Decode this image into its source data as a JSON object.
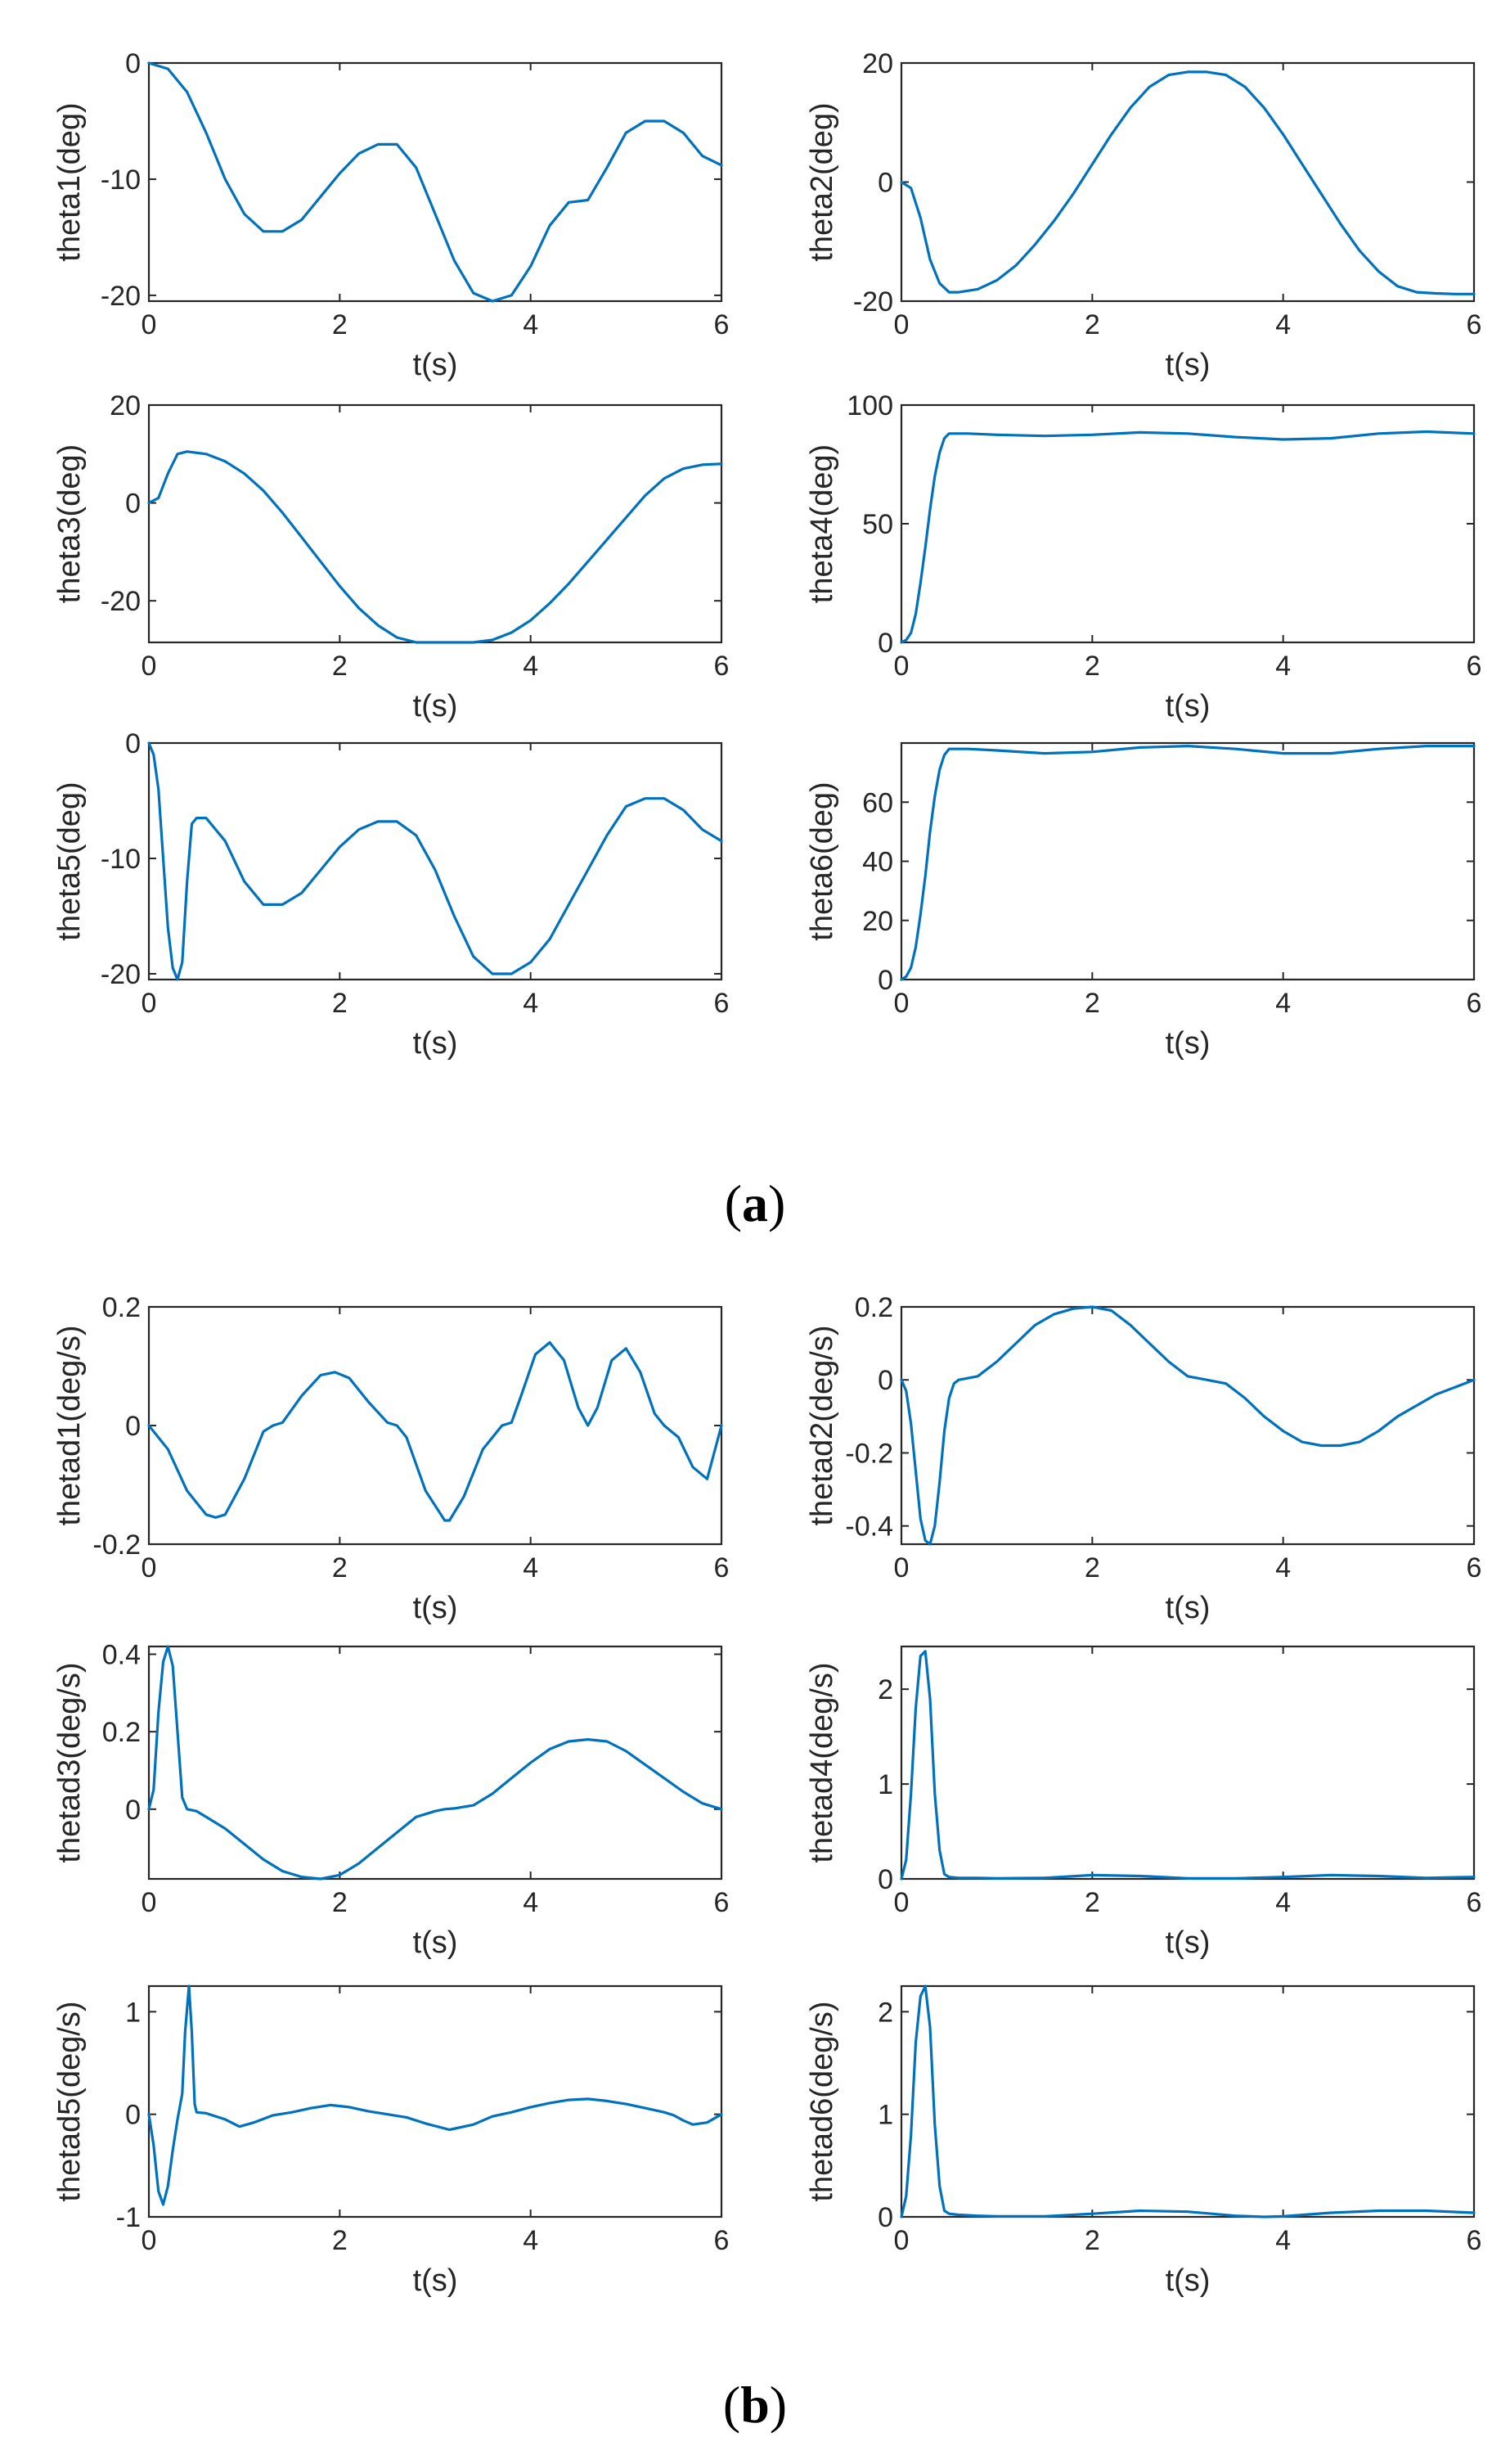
{
  "colors": {
    "line": "#0072BD",
    "axes": "#262626"
  },
  "panel_labels": [
    {
      "open": "(",
      "letter": "a",
      "close": ")"
    },
    {
      "open": "(",
      "letter": "b",
      "close": ")"
    }
  ],
  "chart_data": [
    {
      "type": "line",
      "panel": "a",
      "title": "",
      "xlabel": "t(s)",
      "ylabel": "theta1(deg)",
      "xlim": [
        0,
        6
      ],
      "ylim": [
        -20.5,
        0
      ],
      "xticks": [
        0,
        2,
        4,
        6
      ],
      "yticks": [
        -20,
        -10,
        0
      ],
      "series": [
        {
          "name": "theta1",
          "x": [
            0,
            0.2,
            0.4,
            0.6,
            0.8,
            1.0,
            1.2,
            1.4,
            1.6,
            1.8,
            2.0,
            2.2,
            2.4,
            2.6,
            2.8,
            3.0,
            3.2,
            3.4,
            3.6,
            3.8,
            4.0,
            4.2,
            4.4,
            4.6,
            4.8,
            5.0,
            5.2,
            5.4,
            5.6,
            5.8,
            6.0
          ],
          "y": [
            0,
            -0.5,
            -2.5,
            -6,
            -10,
            -13,
            -14.5,
            -14.5,
            -13.5,
            -11.5,
            -9.5,
            -7.8,
            -7,
            -7,
            -9,
            -13,
            -17,
            -19.8,
            -20.5,
            -20,
            -17.5,
            -14,
            -12,
            -11.8,
            -9,
            -6,
            -5,
            -5,
            -6,
            -8,
            -8.8
          ]
        }
      ]
    },
    {
      "type": "line",
      "panel": "a",
      "title": "",
      "xlabel": "t(s)",
      "ylabel": "theta2(deg)",
      "xlim": [
        0,
        6
      ],
      "ylim": [
        -20,
        20
      ],
      "xticks": [
        0,
        2,
        4,
        6
      ],
      "yticks": [
        -20,
        0,
        20
      ],
      "series": [
        {
          "name": "theta2",
          "x": [
            0,
            0.1,
            0.2,
            0.3,
            0.4,
            0.5,
            0.6,
            0.8,
            1.0,
            1.2,
            1.4,
            1.6,
            1.8,
            2.0,
            2.2,
            2.4,
            2.6,
            2.8,
            3.0,
            3.2,
            3.4,
            3.6,
            3.8,
            4.0,
            4.2,
            4.4,
            4.6,
            4.8,
            5.0,
            5.2,
            5.4,
            5.6,
            5.8,
            6.0
          ],
          "y": [
            0,
            -1,
            -6,
            -13,
            -17,
            -18.5,
            -18.5,
            -18,
            -16.5,
            -14,
            -10.5,
            -6.5,
            -2,
            3,
            8,
            12.5,
            16,
            18,
            18.5,
            18.5,
            18,
            16,
            12.5,
            8,
            3,
            -2,
            -7,
            -11.5,
            -15,
            -17.5,
            -18.5,
            -18.7,
            -18.8,
            -18.8
          ]
        }
      ]
    },
    {
      "type": "line",
      "panel": "a",
      "title": "",
      "xlabel": "t(s)",
      "ylabel": "theta3(deg)",
      "xlim": [
        0,
        6
      ],
      "ylim": [
        -28.5,
        20
      ],
      "xticks": [
        0,
        2,
        4,
        6
      ],
      "yticks": [
        -20,
        0,
        20
      ],
      "series": [
        {
          "name": "theta3",
          "x": [
            0,
            0.1,
            0.2,
            0.3,
            0.4,
            0.6,
            0.8,
            1.0,
            1.2,
            1.4,
            1.6,
            1.8,
            2.0,
            2.2,
            2.4,
            2.6,
            2.8,
            3.0,
            3.2,
            3.4,
            3.6,
            3.8,
            4.0,
            4.2,
            4.4,
            4.6,
            4.8,
            5.0,
            5.2,
            5.4,
            5.6,
            5.8,
            6.0
          ],
          "y": [
            0,
            1,
            6,
            10,
            10.5,
            10,
            8.5,
            6,
            2.5,
            -2,
            -7,
            -12,
            -17,
            -21.5,
            -25,
            -27.5,
            -28.5,
            -28.5,
            -28.5,
            -28.5,
            -28,
            -26.5,
            -24,
            -20.5,
            -16.5,
            -12,
            -7.5,
            -3,
            1.5,
            5,
            7,
            7.8,
            8
          ]
        }
      ]
    },
    {
      "type": "line",
      "panel": "a",
      "title": "",
      "xlabel": "t(s)",
      "ylabel": "theta4(deg)",
      "xlim": [
        0,
        6
      ],
      "ylim": [
        0,
        100
      ],
      "xticks": [
        0,
        2,
        4,
        6
      ],
      "yticks": [
        0,
        50,
        100
      ],
      "series": [
        {
          "name": "theta4",
          "x": [
            0,
            0.05,
            0.1,
            0.15,
            0.2,
            0.25,
            0.3,
            0.35,
            0.4,
            0.45,
            0.5,
            0.7,
            1.0,
            1.5,
            2.0,
            2.5,
            3.0,
            3.5,
            4.0,
            4.5,
            5.0,
            5.5,
            6.0
          ],
          "y": [
            0,
            1,
            4,
            12,
            25,
            40,
            56,
            70,
            80,
            86,
            88,
            88,
            87.5,
            87,
            87.5,
            88.5,
            88,
            86.5,
            85.5,
            86,
            88,
            88.8,
            88
          ]
        }
      ]
    },
    {
      "type": "line",
      "panel": "a",
      "title": "",
      "xlabel": "t(s)",
      "ylabel": "theta5(deg)",
      "xlim": [
        0,
        6
      ],
      "ylim": [
        -20.5,
        0
      ],
      "xticks": [
        0,
        2,
        4,
        6
      ],
      "yticks": [
        -20,
        -10,
        0
      ],
      "series": [
        {
          "name": "theta5",
          "x": [
            0,
            0.05,
            0.1,
            0.15,
            0.2,
            0.25,
            0.3,
            0.35,
            0.4,
            0.45,
            0.5,
            0.6,
            0.8,
            1.0,
            1.2,
            1.4,
            1.6,
            1.8,
            2.0,
            2.2,
            2.4,
            2.6,
            2.8,
            3.0,
            3.2,
            3.4,
            3.6,
            3.8,
            4.0,
            4.2,
            4.4,
            4.6,
            4.8,
            5.0,
            5.2,
            5.4,
            5.6,
            5.8,
            6.0
          ],
          "y": [
            0,
            -1,
            -4,
            -10,
            -16,
            -19.5,
            -20.5,
            -19,
            -12,
            -7,
            -6.5,
            -6.5,
            -8.5,
            -12,
            -14,
            -14,
            -13,
            -11,
            -9,
            -7.5,
            -6.8,
            -6.8,
            -8,
            -11,
            -15,
            -18.5,
            -20,
            -20,
            -19,
            -17,
            -14,
            -11,
            -8,
            -5.5,
            -4.8,
            -4.8,
            -5.8,
            -7.5,
            -8.5
          ]
        }
      ]
    },
    {
      "type": "line",
      "panel": "a",
      "title": "",
      "xlabel": "t(s)",
      "ylabel": "theta6(deg)",
      "xlim": [
        0,
        6
      ],
      "ylim": [
        0,
        80
      ],
      "xticks": [
        0,
        2,
        4,
        6
      ],
      "yticks": [
        0,
        20,
        40,
        60
      ],
      "series": [
        {
          "name": "theta6",
          "x": [
            0,
            0.05,
            0.1,
            0.15,
            0.2,
            0.25,
            0.3,
            0.35,
            0.4,
            0.45,
            0.5,
            0.7,
            1.0,
            1.5,
            2.0,
            2.5,
            3.0,
            3.5,
            4.0,
            4.5,
            5.0,
            5.5,
            6.0
          ],
          "y": [
            0,
            1,
            4,
            11,
            22,
            35,
            50,
            62,
            71,
            76,
            78,
            78,
            77.5,
            76.5,
            77,
            78.5,
            79,
            78,
            76.5,
            76.5,
            78,
            79,
            79
          ]
        }
      ]
    },
    {
      "type": "line",
      "panel": "b",
      "title": "",
      "xlabel": "t(s)",
      "ylabel": "thetad1(deg/s)",
      "xlim": [
        0,
        6
      ],
      "ylim": [
        -0.2,
        0.2
      ],
      "xticks": [
        0,
        2,
        4,
        6
      ],
      "yticks": [
        -0.2,
        0,
        0.2
      ],
      "series": [
        {
          "name": "thetad1",
          "x": [
            0,
            0.2,
            0.4,
            0.6,
            0.7,
            0.8,
            1.0,
            1.2,
            1.3,
            1.4,
            1.6,
            1.8,
            1.95,
            2.1,
            2.3,
            2.5,
            2.6,
            2.7,
            2.9,
            3.1,
            3.15,
            3.3,
            3.5,
            3.7,
            3.8,
            3.9,
            4.05,
            4.2,
            4.35,
            4.5,
            4.6,
            4.7,
            4.85,
            5.0,
            5.15,
            5.3,
            5.4,
            5.55,
            5.7,
            5.85,
            6.0
          ],
          "y": [
            0,
            -0.04,
            -0.11,
            -0.15,
            -0.155,
            -0.15,
            -0.09,
            -0.01,
            0,
            0.005,
            0.05,
            0.085,
            0.09,
            0.08,
            0.04,
            0.005,
            0,
            -0.02,
            -0.11,
            -0.16,
            -0.16,
            -0.12,
            -0.04,
            0,
            0.005,
            0.05,
            0.12,
            0.14,
            0.11,
            0.03,
            0,
            0.03,
            0.11,
            0.13,
            0.09,
            0.02,
            0,
            -0.02,
            -0.07,
            -0.09,
            0
          ]
        }
      ]
    },
    {
      "type": "line",
      "panel": "b",
      "title": "",
      "xlabel": "t(s)",
      "ylabel": "thetad2(deg/s)",
      "xlim": [
        0,
        6
      ],
      "ylim": [
        -0.45,
        0.2
      ],
      "xticks": [
        0,
        2,
        4,
        6
      ],
      "yticks": [
        -0.4,
        -0.2,
        0,
        0.2
      ],
      "series": [
        {
          "name": "thetad2",
          "x": [
            0,
            0.05,
            0.1,
            0.15,
            0.2,
            0.25,
            0.3,
            0.35,
            0.4,
            0.45,
            0.5,
            0.55,
            0.6,
            0.8,
            1.0,
            1.2,
            1.4,
            1.6,
            1.8,
            2.0,
            2.2,
            2.4,
            2.6,
            2.8,
            3.0,
            3.2,
            3.4,
            3.6,
            3.8,
            4.0,
            4.2,
            4.4,
            4.6,
            4.8,
            5.0,
            5.2,
            5.4,
            5.6,
            5.8,
            6.0
          ],
          "y": [
            0,
            -0.03,
            -0.12,
            -0.25,
            -0.38,
            -0.44,
            -0.45,
            -0.4,
            -0.28,
            -0.14,
            -0.05,
            -0.01,
            0,
            0.01,
            0.05,
            0.1,
            0.15,
            0.18,
            0.195,
            0.2,
            0.19,
            0.15,
            0.1,
            0.05,
            0.01,
            0,
            -0.01,
            -0.05,
            -0.1,
            -0.14,
            -0.17,
            -0.18,
            -0.18,
            -0.17,
            -0.14,
            -0.1,
            -0.07,
            -0.04,
            -0.02,
            0
          ]
        }
      ]
    },
    {
      "type": "line",
      "panel": "b",
      "title": "",
      "xlabel": "t(s)",
      "ylabel": "thetad3(deg/s)",
      "xlim": [
        0,
        6
      ],
      "ylim": [
        -0.18,
        0.42
      ],
      "xticks": [
        0,
        2,
        4,
        6
      ],
      "yticks": [
        0,
        0.2,
        0.4
      ],
      "series": [
        {
          "name": "thetad3",
          "x": [
            0,
            0.05,
            0.1,
            0.15,
            0.2,
            0.25,
            0.3,
            0.35,
            0.4,
            0.5,
            0.6,
            0.8,
            1.0,
            1.2,
            1.4,
            1.6,
            1.8,
            2.0,
            2.2,
            2.4,
            2.6,
            2.8,
            3.0,
            3.1,
            3.2,
            3.4,
            3.6,
            3.8,
            4.0,
            4.2,
            4.4,
            4.6,
            4.8,
            5.0,
            5.2,
            5.4,
            5.6,
            5.8,
            6.0
          ],
          "y": [
            0,
            0.05,
            0.25,
            0.38,
            0.42,
            0.37,
            0.2,
            0.03,
            0,
            -0.005,
            -0.02,
            -0.05,
            -0.09,
            -0.13,
            -0.16,
            -0.175,
            -0.18,
            -0.17,
            -0.14,
            -0.1,
            -0.06,
            -0.02,
            -0.005,
            0,
            0.002,
            0.01,
            0.04,
            0.08,
            0.12,
            0.155,
            0.175,
            0.18,
            0.175,
            0.15,
            0.115,
            0.08,
            0.045,
            0.015,
            0
          ]
        }
      ]
    },
    {
      "type": "line",
      "panel": "b",
      "title": "",
      "xlabel": "t(s)",
      "ylabel": "thetad4(deg/s)",
      "xlim": [
        0,
        6
      ],
      "ylim": [
        0,
        2.45
      ],
      "xticks": [
        0,
        2,
        4,
        6
      ],
      "yticks": [
        0,
        1,
        2
      ],
      "series": [
        {
          "name": "thetad4",
          "x": [
            0,
            0.05,
            0.1,
            0.15,
            0.2,
            0.25,
            0.3,
            0.35,
            0.4,
            0.45,
            0.5,
            0.6,
            0.8,
            1.0,
            1.5,
            2.0,
            2.5,
            3.0,
            3.5,
            4.0,
            4.5,
            5.0,
            5.5,
            6.0
          ],
          "y": [
            0,
            0.2,
            0.9,
            1.8,
            2.35,
            2.4,
            1.9,
            0.9,
            0.3,
            0.05,
            0.02,
            0.01,
            0.01,
            0.005,
            0.01,
            0.04,
            0.03,
            0.005,
            0.005,
            0.02,
            0.04,
            0.03,
            0.01,
            0.02
          ]
        }
      ]
    },
    {
      "type": "line",
      "panel": "b",
      "title": "",
      "xlabel": "t(s)",
      "ylabel": "thetad5(deg/s)",
      "xlim": [
        0,
        6
      ],
      "ylim": [
        -1,
        1.25
      ],
      "xticks": [
        0,
        2,
        4,
        6
      ],
      "yticks": [
        -1,
        0,
        1
      ],
      "series": [
        {
          "name": "thetad5",
          "x": [
            0,
            0.05,
            0.1,
            0.15,
            0.2,
            0.25,
            0.3,
            0.35,
            0.38,
            0.42,
            0.45,
            0.48,
            0.5,
            0.6,
            0.8,
            0.95,
            1.1,
            1.3,
            1.5,
            1.7,
            1.9,
            2.1,
            2.3,
            2.5,
            2.7,
            2.9,
            3.15,
            3.4,
            3.6,
            3.8,
            4.0,
            4.2,
            4.4,
            4.6,
            4.8,
            5.0,
            5.2,
            5.4,
            5.5,
            5.6,
            5.7,
            5.85,
            6.0
          ],
          "y": [
            0,
            -0.3,
            -0.75,
            -0.88,
            -0.7,
            -0.35,
            -0.05,
            0.2,
            0.8,
            1.25,
            0.8,
            0.1,
            0.02,
            0.01,
            -0.05,
            -0.12,
            -0.08,
            -0.01,
            0.02,
            0.06,
            0.09,
            0.07,
            0.03,
            0,
            -0.03,
            -0.09,
            -0.15,
            -0.1,
            -0.02,
            0.02,
            0.07,
            0.11,
            0.14,
            0.15,
            0.13,
            0.1,
            0.06,
            0.02,
            -0.01,
            -0.06,
            -0.1,
            -0.08,
            0
          ]
        }
      ]
    },
    {
      "type": "line",
      "panel": "b",
      "title": "",
      "xlabel": "t(s)",
      "ylabel": "thetad6(deg/s)",
      "xlim": [
        0,
        6
      ],
      "ylim": [
        0,
        2.25
      ],
      "xticks": [
        0,
        2,
        4,
        6
      ],
      "yticks": [
        0,
        1,
        2
      ],
      "series": [
        {
          "name": "thetad6",
          "x": [
            0,
            0.05,
            0.1,
            0.15,
            0.2,
            0.25,
            0.3,
            0.35,
            0.4,
            0.45,
            0.5,
            0.6,
            0.8,
            1.0,
            1.5,
            2.0,
            2.5,
            3.0,
            3.5,
            3.8,
            4.0,
            4.5,
            5.0,
            5.5,
            6.0
          ],
          "y": [
            0,
            0.2,
            0.8,
            1.7,
            2.15,
            2.25,
            1.85,
            0.9,
            0.3,
            0.06,
            0.03,
            0.02,
            0.01,
            0.005,
            0.005,
            0.03,
            0.06,
            0.05,
            0.01,
            -0.005,
            0.005,
            0.04,
            0.06,
            0.06,
            0.04
          ]
        }
      ]
    }
  ]
}
